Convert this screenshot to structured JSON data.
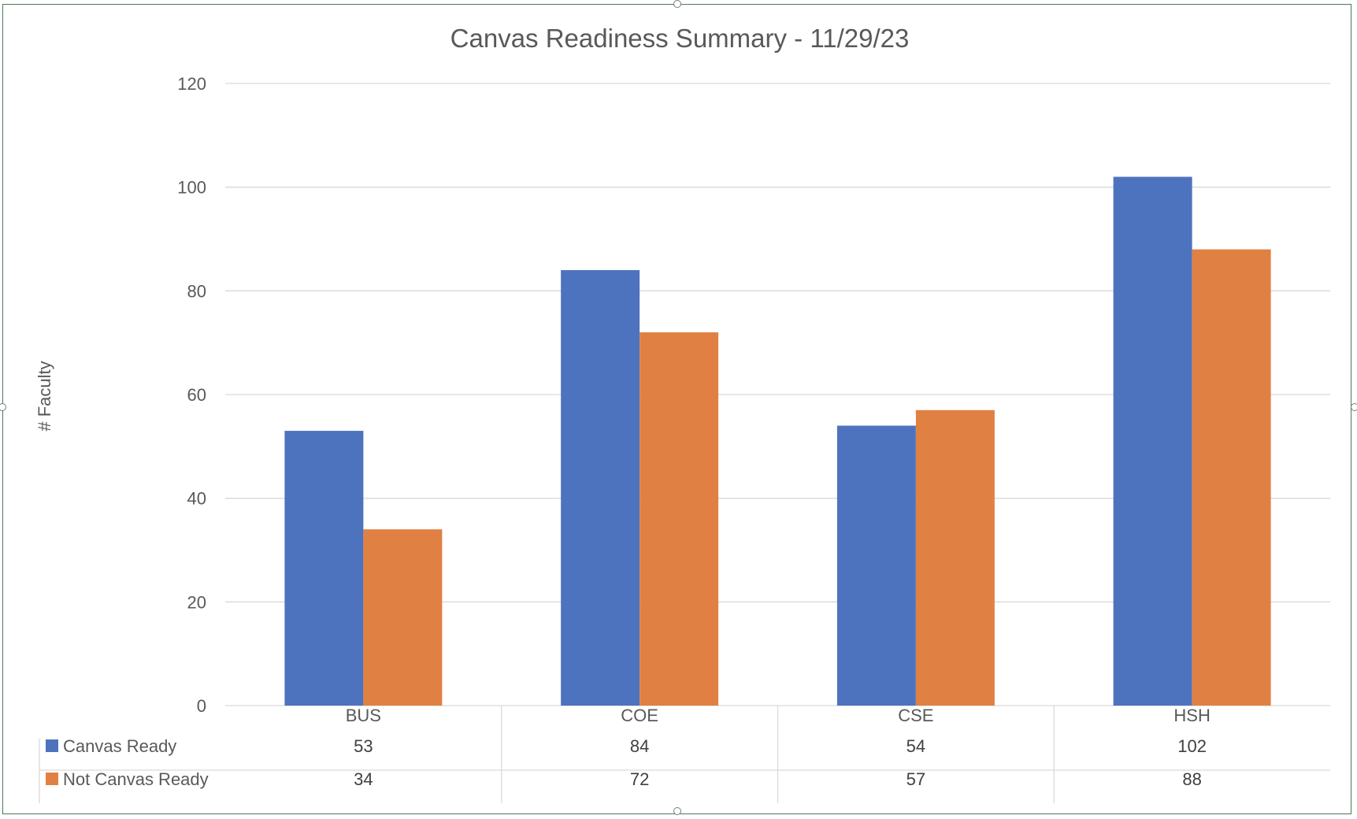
{
  "chart_data": {
    "type": "bar",
    "title": "Canvas Readiness Summary - 11/29/23",
    "xlabel": "",
    "ylabel": "# Faculty",
    "categories": [
      "BUS",
      "COE",
      "CSE",
      "HSH"
    ],
    "series": [
      {
        "name": "Canvas Ready",
        "color": "#4E73BE",
        "values": [
          53,
          84,
          54,
          102
        ]
      },
      {
        "name": "Not Canvas Ready",
        "color": "#E08143",
        "values": [
          34,
          72,
          57,
          88
        ]
      }
    ],
    "ylim": [
      0,
      120
    ],
    "yticks": [
      "0",
      "20",
      "40",
      "60",
      "80",
      "100",
      "120"
    ],
    "grid": true,
    "legend": "data-table-below",
    "data_table": true
  }
}
